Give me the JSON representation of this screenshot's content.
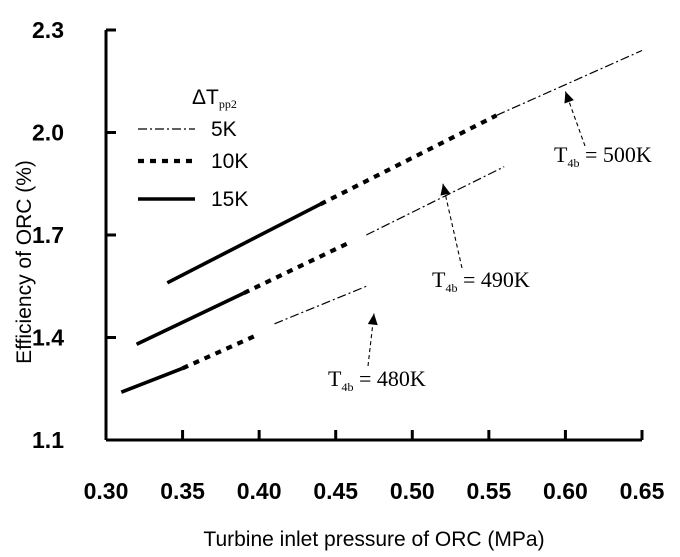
{
  "chart_data": {
    "type": "line",
    "title": "",
    "xlabel": "Turbine inlet pressure of ORC  (MPa)",
    "ylabel": "Efficiency of ORC (%)",
    "xlim": [
      0.3,
      0.65
    ],
    "ylim": [
      1.1,
      2.3
    ],
    "xticks": [
      0.3,
      0.35,
      0.4,
      0.45,
      0.5,
      0.55,
      0.6,
      0.65
    ],
    "xtick_labels": [
      "0.30",
      "0.35",
      "0.40",
      "0.45",
      "0.50",
      "0.55",
      "0.60",
      "0.65"
    ],
    "yticks": [
      1.1,
      1.4,
      1.7,
      2.0,
      2.3
    ],
    "ytick_labels": [
      "1.1",
      "1.4",
      "1.7",
      "2.0",
      "2.3"
    ],
    "legend": {
      "title": "ΔT",
      "title_sub": "pp2",
      "placement": "top-left",
      "entries": [
        {
          "label": "5K",
          "style": "dashdot"
        },
        {
          "label": "10K",
          "style": "dotted"
        },
        {
          "label": "15K",
          "style": "solid"
        }
      ]
    },
    "series": [
      {
        "group": "T4b = 480K",
        "deltaT": "15K",
        "style": "solid",
        "x": [
          0.31,
          0.35
        ],
        "y": [
          1.24,
          1.31
        ]
      },
      {
        "group": "T4b = 480K",
        "deltaT": "10K",
        "style": "dotted",
        "x": [
          0.35,
          0.4
        ],
        "y": [
          1.31,
          1.41
        ]
      },
      {
        "group": "T4b = 480K",
        "deltaT": "5K",
        "style": "dashdot",
        "x": [
          0.41,
          0.47
        ],
        "y": [
          1.44,
          1.55
        ]
      },
      {
        "group": "T4b = 490K",
        "deltaT": "15K",
        "style": "solid",
        "x": [
          0.32,
          0.39
        ],
        "y": [
          1.38,
          1.53
        ]
      },
      {
        "group": "T4b = 490K",
        "deltaT": "10K",
        "style": "dotted",
        "x": [
          0.39,
          0.46
        ],
        "y": [
          1.53,
          1.68
        ]
      },
      {
        "group": "T4b = 490K",
        "deltaT": "5K",
        "style": "dashdot",
        "x": [
          0.47,
          0.56
        ],
        "y": [
          1.7,
          1.9
        ]
      },
      {
        "group": "T4b = 500K",
        "deltaT": "15K",
        "style": "solid",
        "x": [
          0.34,
          0.44
        ],
        "y": [
          1.56,
          1.79
        ]
      },
      {
        "group": "T4b = 500K",
        "deltaT": "10K",
        "style": "dotted",
        "x": [
          0.44,
          0.555
        ],
        "y": [
          1.79,
          2.05
        ]
      },
      {
        "group": "T4b = 500K",
        "deltaT": "5K",
        "style": "dashdot",
        "x": [
          0.555,
          0.65
        ],
        "y": [
          2.05,
          2.24
        ]
      }
    ],
    "annotations": [
      {
        "main": "T",
        "sub": "4b",
        "rest": " = 500K",
        "point_to": [
          0.6,
          2.12
        ]
      },
      {
        "main": "T",
        "sub": "4b",
        "rest": " = 490K",
        "point_to": [
          0.52,
          1.85
        ]
      },
      {
        "main": "T",
        "sub": "4b",
        "rest": " = 480K",
        "point_to": [
          0.475,
          1.47
        ]
      }
    ]
  }
}
